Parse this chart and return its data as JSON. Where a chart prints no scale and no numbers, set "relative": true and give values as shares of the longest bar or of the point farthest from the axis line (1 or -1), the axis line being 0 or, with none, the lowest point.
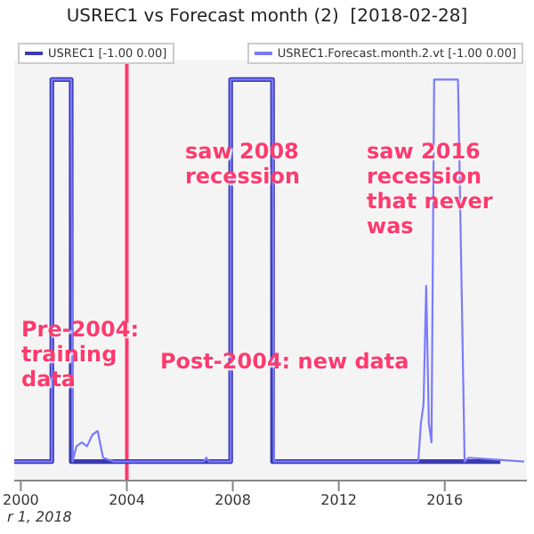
{
  "chart_data": {
    "type": "line",
    "title": "USREC1 vs Forecast month (2)  [2018-02-28]",
    "relative": true,
    "xlim": [
      1999.75,
      2019.1
    ],
    "xticks": [
      2000,
      2004,
      2008,
      2012,
      2016
    ],
    "legend": "top",
    "grid": false,
    "series": [
      {
        "name": "USREC1 [-1.00 0.00]",
        "color": "#3b3bb0",
        "x": [
          1999.75,
          2001.17,
          2001.17,
          2001.9,
          2001.9,
          2007.92,
          2007.92,
          2009.5,
          2009.5,
          2018.1
        ],
        "values": [
          0,
          0,
          1,
          1,
          0,
          0,
          1,
          1,
          0,
          0
        ]
      },
      {
        "name": "USREC1.Forecast.month.2.vt [-1.00 0.00]",
        "color": "#7b7bff",
        "x": [
          1999.75,
          2001.17,
          2001.17,
          2001.9,
          2001.95,
          2002.1,
          2002.3,
          2002.5,
          2002.7,
          2002.9,
          2003.1,
          2003.5,
          2006.9,
          2007.0,
          2007.1,
          2007.92,
          2007.92,
          2009.5,
          2009.55,
          2015.0,
          2015.1,
          2015.2,
          2015.3,
          2015.4,
          2015.5,
          2015.6,
          2016.5,
          2016.75,
          2016.9,
          2019.0
        ],
        "values": [
          0,
          0,
          1,
          1,
          0,
          0.04,
          0.05,
          0.04,
          0.07,
          0.08,
          0.01,
          0,
          0,
          0.01,
          0,
          0,
          1,
          1,
          0,
          0,
          0.1,
          0.15,
          0.46,
          0.1,
          0.05,
          1,
          1,
          0,
          0.01,
          0
        ]
      }
    ],
    "ref_lines": [
      {
        "axis": "x",
        "value": 2004,
        "color": "#ff3a6e"
      }
    ],
    "annotations": [
      "Pre-2004: training data",
      "saw 2008 recession",
      "Post-2004: new data",
      "saw 2016 recession that never was",
      "r 1, 2018"
    ]
  }
}
